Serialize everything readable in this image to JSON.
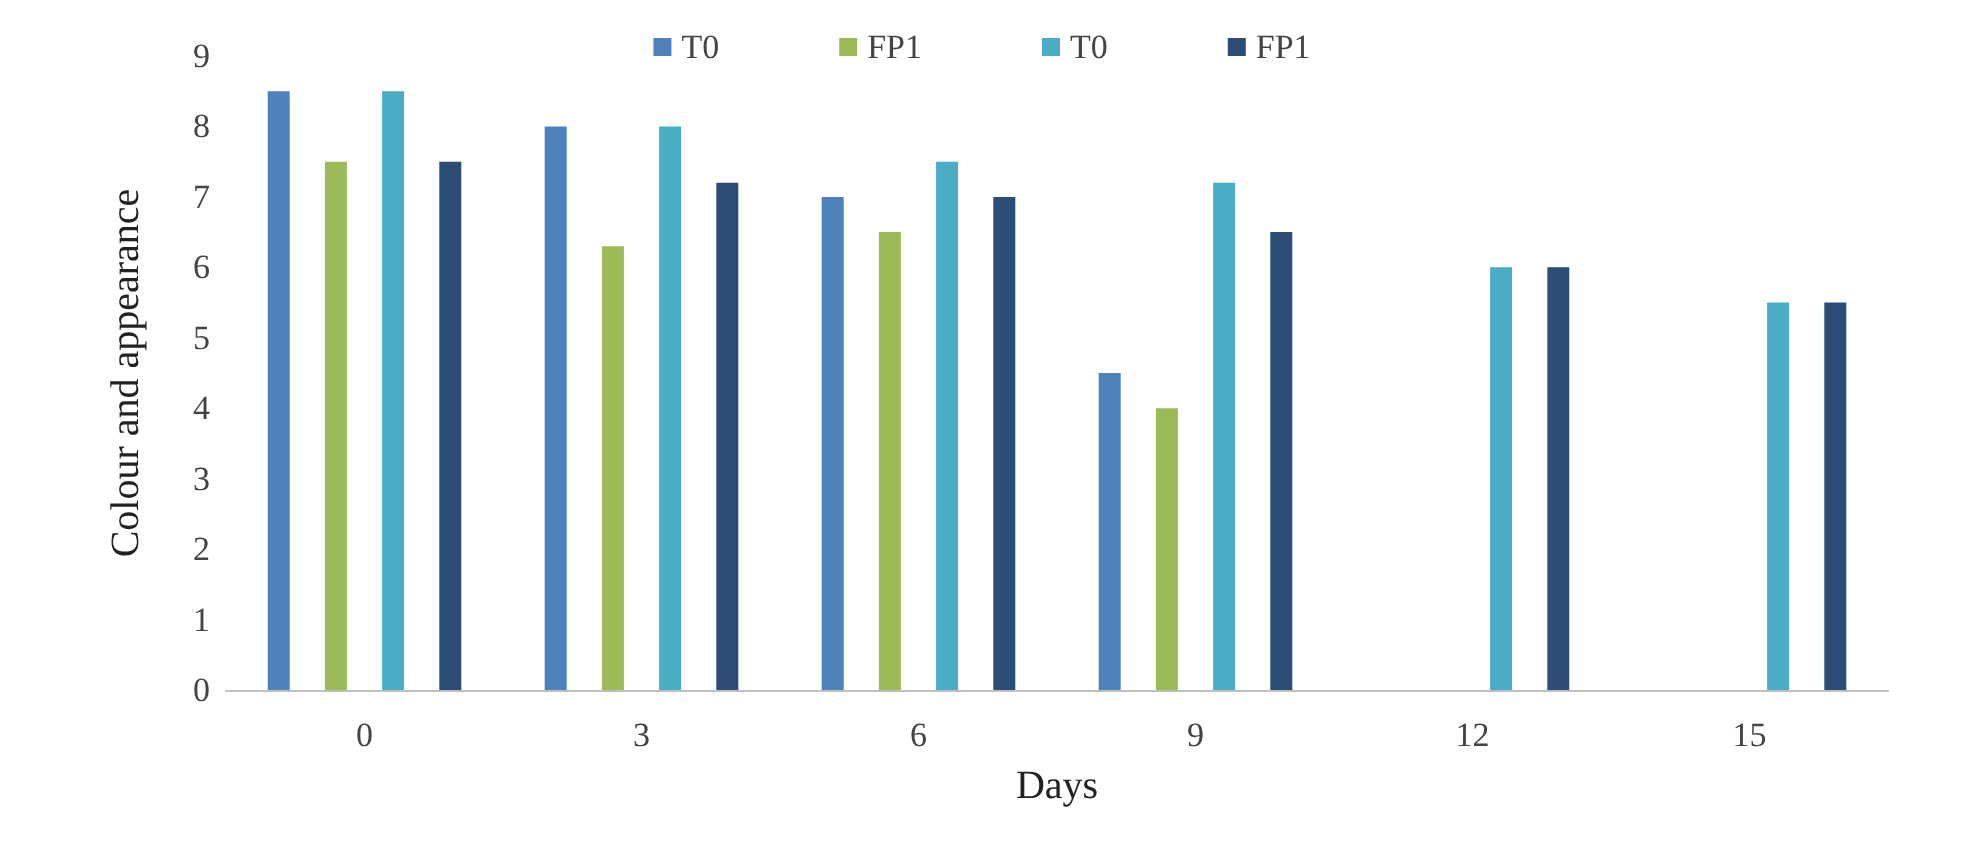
{
  "chart_data": {
    "type": "bar",
    "xlabel": "Days",
    "ylabel": "Colour and appearance",
    "categories": [
      "0",
      "3",
      "6",
      "9",
      "12",
      "15"
    ],
    "series": [
      {
        "name": "T0",
        "color": "#4f81bd",
        "values": [
          8.5,
          8.0,
          7.0,
          4.5,
          null,
          null
        ]
      },
      {
        "name": "FP1",
        "color": "#9bbb59",
        "values": [
          7.5,
          6.3,
          6.5,
          4.0,
          null,
          null
        ]
      },
      {
        "name": "T0",
        "color": "#4bacc6",
        "values": [
          8.5,
          8.0,
          7.5,
          7.2,
          6.0,
          5.5
        ]
      },
      {
        "name": "FP1",
        "color": "#2c4d75",
        "values": [
          7.5,
          7.2,
          7.0,
          6.5,
          6.0,
          5.5
        ]
      }
    ],
    "ylim": [
      0,
      9
    ],
    "yticks": [
      0,
      1,
      2,
      3,
      4,
      5,
      6,
      7,
      8,
      9
    ],
    "grid": false,
    "legend": "top"
  }
}
